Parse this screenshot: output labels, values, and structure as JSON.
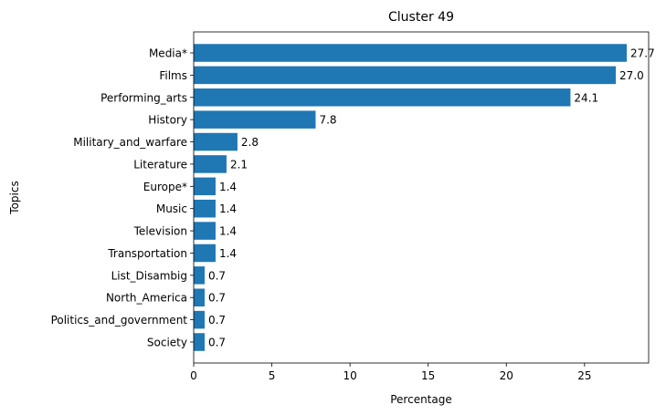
{
  "chart_data": {
    "type": "bar",
    "orientation": "horizontal",
    "title": "Cluster 49",
    "xlabel": "Percentage",
    "ylabel": "Topics",
    "xlim": [
      0,
      29.1
    ],
    "xticks": [
      0,
      5,
      10,
      15,
      20,
      25
    ],
    "grid": false,
    "legend": "none",
    "bar_color": "#1f77b4",
    "categories": [
      "Media*",
      "Films",
      "Performing_arts",
      "History",
      "Military_and_warfare",
      "Literature",
      "Europe*",
      "Music",
      "Television",
      "Transportation",
      "List_Disambig",
      "North_America",
      "Politics_and_government",
      "Society"
    ],
    "values": [
      27.7,
      27.0,
      24.1,
      7.8,
      2.8,
      2.1,
      1.4,
      1.4,
      1.4,
      1.4,
      0.7,
      0.7,
      0.7,
      0.7
    ],
    "value_labels": [
      "27.7",
      "27.0",
      "24.1",
      "7.8",
      "2.8",
      "2.1",
      "1.4",
      "1.4",
      "1.4",
      "1.4",
      "0.7",
      "0.7",
      "0.7",
      "0.7"
    ]
  }
}
